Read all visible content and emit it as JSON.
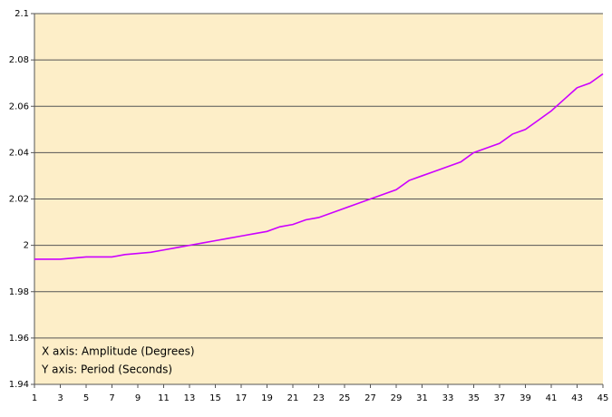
{
  "chart_data": {
    "type": "line",
    "annotations": [
      "X axis: Amplitude (Degrees)",
      "Y axis: Period (Seconds)"
    ],
    "x": [
      1,
      2,
      3,
      4,
      5,
      6,
      7,
      8,
      9,
      10,
      11,
      12,
      13,
      14,
      15,
      16,
      17,
      18,
      19,
      20,
      21,
      22,
      23,
      24,
      25,
      26,
      27,
      28,
      29,
      30,
      31,
      32,
      33,
      34,
      35,
      36,
      37,
      38,
      39,
      40,
      41,
      42,
      43,
      44,
      45
    ],
    "series": [
      {
        "color": "#cc00ff",
        "values": [
          1.994,
          1.994,
          1.994,
          1.9945,
          1.995,
          1.995,
          1.995,
          1.996,
          1.9965,
          1.997,
          1.998,
          1.999,
          2.0,
          2.001,
          2.002,
          2.003,
          2.004,
          2.005,
          2.006,
          2.008,
          2.009,
          2.011,
          2.012,
          2.014,
          2.016,
          2.018,
          2.02,
          2.022,
          2.024,
          2.028,
          2.03,
          2.032,
          2.034,
          2.036,
          2.04,
          2.042,
          2.044,
          2.048,
          2.05,
          2.054,
          2.058,
          2.063,
          2.068,
          2.07,
          2.074
        ]
      }
    ],
    "xlim": [
      1,
      45
    ],
    "xticks": [
      1,
      3,
      5,
      7,
      9,
      11,
      13,
      15,
      17,
      19,
      21,
      23,
      25,
      27,
      29,
      31,
      33,
      35,
      37,
      39,
      41,
      43,
      45
    ],
    "ylim": [
      1.94,
      2.1
    ],
    "yticks": [
      1.94,
      1.96,
      1.98,
      2,
      2.02,
      2.04,
      2.06,
      2.08,
      2.1
    ],
    "grid": true,
    "background": "#fdeec8"
  }
}
